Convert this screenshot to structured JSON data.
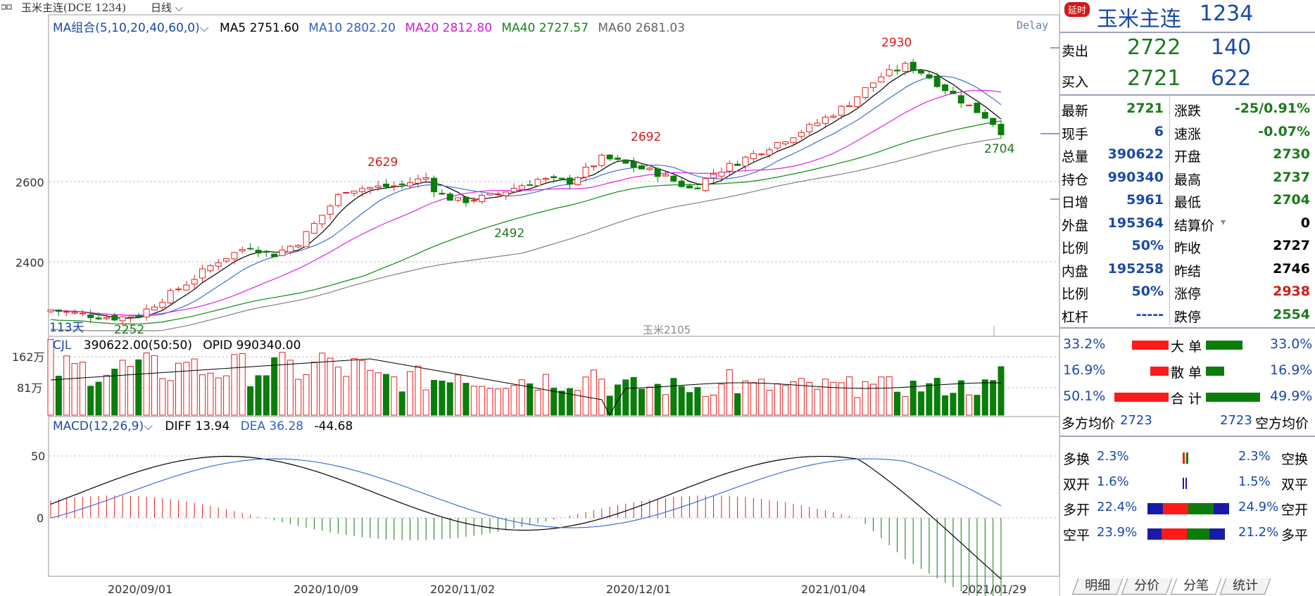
{
  "header": {
    "symbol_label": "玉米主连(DCE 1234)",
    "period": "日线",
    "ma_group": "MA组合(5,10,20,40,60,0)",
    "ma5": "MA5 2751.60",
    "ma10": "MA10 2802.20",
    "ma20": "MA20 2812.80",
    "ma40": "MA40 2727.57",
    "ma60": "MA60 2681.03",
    "delay": "Delay"
  },
  "colors": {
    "up": "#e02020",
    "down": "#0b7d0b",
    "ma5": "#000000",
    "ma10": "#3a6fd8",
    "ma20": "#e020e0",
    "ma40": "#0d8c0d",
    "ma60": "#808080",
    "grid": "#b8b8b8"
  },
  "price_axis": {
    "ticks": [
      "2600",
      "2400"
    ]
  },
  "price_annotations": {
    "high_2930": "2930",
    "high_2692": "2692",
    "high_2629": "2629",
    "low_2492": "2492",
    "low_2252": "2252",
    "low_2704": "2704",
    "days": "113天",
    "contract": "玉米2105"
  },
  "volume": {
    "label": "CJL",
    "value": "390622.00(50:50)",
    "opid": "OPID 990340.00",
    "ticks": [
      "162万",
      "81万"
    ]
  },
  "macd": {
    "label": "MACD(12,26,9)",
    "diff": "DIFF 13.94",
    "dea": "DEA 36.28",
    "macd": "-44.68",
    "ticks": [
      "50",
      "0"
    ]
  },
  "x_axis": [
    "2020/09/01",
    "2020/10/09",
    "2020/11/02",
    "2020/12/01",
    "2021/01/04",
    "2021/01/29"
  ],
  "chart_data": {
    "type": "candlestick",
    "series": [
      "MA5",
      "MA10",
      "MA20",
      "MA40",
      "MA60",
      "CJL",
      "DIFF",
      "DEA",
      "MACD"
    ],
    "price_high": 2930,
    "price_low": 2252,
    "last_ma5": 2751.6,
    "last_ma10": 2802.2,
    "last_ma20": 2812.8,
    "last_ma40": 2727.57,
    "last_ma60": 2681.03,
    "last_diff": 13.94,
    "last_dea": 36.28,
    "last_macd": -44.68
  },
  "quote": {
    "badge": "延时",
    "title": "玉米主连",
    "code": "1234",
    "sell_label": "卖出",
    "sell_price": "2722",
    "sell_vol": "140",
    "buy_label": "买入",
    "buy_price": "2721",
    "buy_vol": "622",
    "rows": [
      {
        "l1": "最新",
        "v1": "2721",
        "l2": "涨跌",
        "v2": "-25/0.91%"
      },
      {
        "l1": "现手",
        "v1": "6",
        "l2": "速涨",
        "v2": "-0.07%"
      },
      {
        "l1": "总量",
        "v1": "390622",
        "l2": "开盘",
        "v2": "2730"
      },
      {
        "l1": "持仓",
        "v1": "990340",
        "l2": "最高",
        "v2": "2737"
      },
      {
        "l1": "日增",
        "v1": "5961",
        "l2": "最低",
        "v2": "2704"
      },
      {
        "l1": "外盘",
        "v1": "195364",
        "l2": "结算价",
        "v2": "0"
      },
      {
        "l1": "比例",
        "v1": "50%",
        "l2": "昨收",
        "v2": "2727"
      },
      {
        "l1": "内盘",
        "v1": "195258",
        "l2": "昨结",
        "v2": "2746"
      },
      {
        "l1": "比例",
        "v1": "50%",
        "l2": "涨停",
        "v2": "2938"
      },
      {
        "l1": "杠杆",
        "v1": "-----",
        "l2": "跌停",
        "v2": "2554"
      }
    ]
  },
  "flows": {
    "big": {
      "left": "33.2%",
      "label": "大 单",
      "right": "33.0%"
    },
    "small": {
      "left": "16.9%",
      "label": "散 单",
      "right": "16.9%"
    },
    "total": {
      "left": "50.1%",
      "label": "合 计",
      "right": "49.9%"
    },
    "long_avg_label": "多方均价",
    "long_avg": "2723",
    "short_avg": "2723",
    "short_avg_label": "空方均价"
  },
  "positions": [
    {
      "l": "多换",
      "lv": "2.3%",
      "rv": "2.3%",
      "r": "空换"
    },
    {
      "l": "双开",
      "lv": "1.6%",
      "rv": "1.5%",
      "r": "双平"
    },
    {
      "l": "多开",
      "lv": "22.4%",
      "rv": "24.9%",
      "r": "空开"
    },
    {
      "l": "空平",
      "lv": "23.9%",
      "rv": "21.2%",
      "r": "多平"
    }
  ],
  "tabs": [
    "明细",
    "分价",
    "分笔",
    "统计"
  ]
}
